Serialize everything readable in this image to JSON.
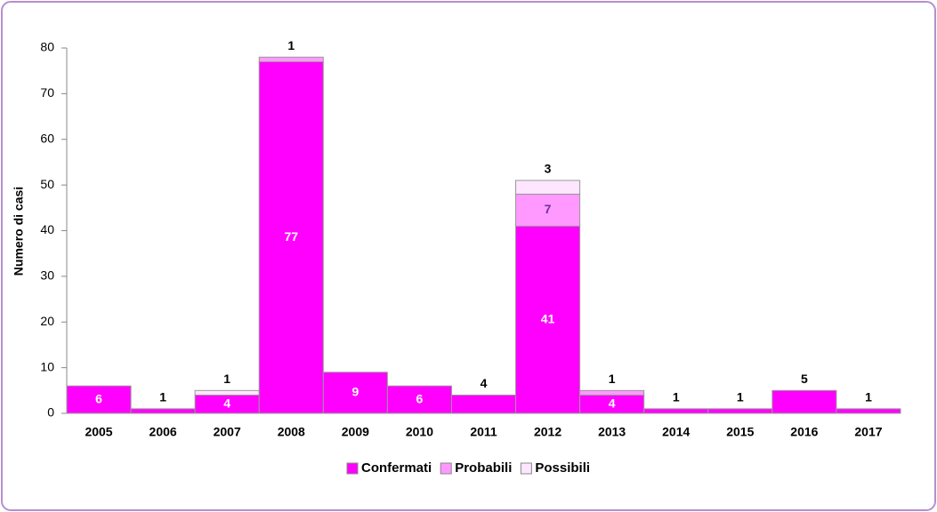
{
  "chart_data": {
    "type": "stacked_bar",
    "y_label": "Numero di casi",
    "categories": [
      "2005",
      "2006",
      "2007",
      "2008",
      "2009",
      "2010",
      "2011",
      "2012",
      "2013",
      "2014",
      "2015",
      "2016",
      "2017"
    ],
    "series": [
      {
        "name": "Confermati",
        "color": "#ff00ff",
        "values": [
          6,
          1,
          4,
          77,
          9,
          6,
          4,
          41,
          4,
          1,
          1,
          5,
          1
        ]
      },
      {
        "name": "Probabili",
        "color": "#ff99ff",
        "values": [
          null,
          null,
          null,
          1,
          null,
          null,
          null,
          7,
          1,
          null,
          null,
          null,
          null
        ]
      },
      {
        "name": "Possibili",
        "color": "#ffe6ff",
        "values": [
          null,
          null,
          1,
          null,
          null,
          null,
          null,
          3,
          null,
          null,
          null,
          null,
          null
        ]
      }
    ],
    "ylim": [
      0,
      80
    ],
    "yticks": [
      0,
      10,
      20,
      30,
      40,
      50,
      60,
      70,
      80
    ]
  }
}
